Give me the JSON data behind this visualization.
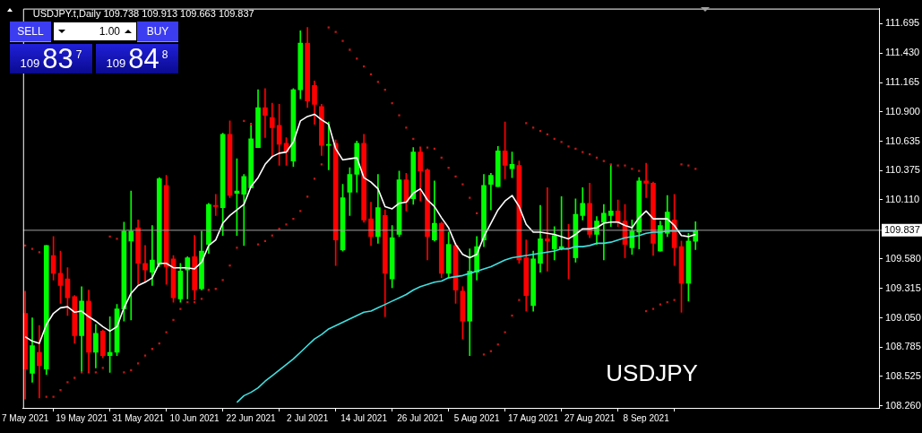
{
  "chart_data": {
    "type": "candlestick",
    "title": "USDJPY.t,Daily 109.738 109.913 109.663 109.837",
    "categories": [
      "7 May 2021",
      null,
      null,
      null,
      null,
      null,
      null,
      null,
      "19 May 2021",
      null,
      null,
      null,
      null,
      null,
      null,
      null,
      "31 May 2021",
      null,
      null,
      null,
      null,
      null,
      null,
      null,
      "10 Jun 2021",
      null,
      null,
      null,
      null,
      null,
      null,
      null,
      "22 Jun 2021",
      null,
      null,
      null,
      null,
      null,
      null,
      null,
      "2 Jul 2021",
      null,
      null,
      null,
      null,
      null,
      null,
      null,
      "14 Jul 2021",
      null,
      null,
      null,
      null,
      null,
      null,
      null,
      "26 Jul 2021",
      null,
      null,
      null,
      null,
      null,
      null,
      null,
      "5 Aug 2021",
      null,
      null,
      null,
      null,
      null,
      null,
      null,
      "17 Aug 2021",
      null,
      null,
      null,
      null,
      null,
      null,
      null,
      "27 Aug 2021",
      null,
      null,
      null,
      null,
      null,
      null,
      null,
      "8 Sep 2021",
      null,
      null,
      null,
      null,
      null,
      null,
      null
    ],
    "ylim": [
      108.24,
      111.83
    ],
    "yticks": [
      {
        "value": 111.695,
        "label": "111.695"
      },
      {
        "value": 111.43,
        "label": "111.430"
      },
      {
        "value": 111.165,
        "label": "111.165"
      },
      {
        "value": 110.9,
        "label": "110.900"
      },
      {
        "value": 110.635,
        "label": "110.635"
      },
      {
        "value": 110.375,
        "label": "110.375"
      },
      {
        "value": 110.11,
        "label": "110.110"
      },
      {
        "value": 109.58,
        "label": "109.580"
      },
      {
        "value": 109.315,
        "label": "109.315"
      },
      {
        "value": 109.05,
        "label": "109.050"
      },
      {
        "value": 108.785,
        "label": "108.785"
      },
      {
        "value": 108.525,
        "label": "108.525"
      },
      {
        "value": 108.26,
        "label": "108.260"
      }
    ],
    "series": [
      {
        "ohlc": [
          [
            109.09,
            109.29,
            108.32,
            108.59
          ],
          [
            108.55,
            109.05,
            108.47,
            108.8
          ],
          [
            108.74,
            108.98,
            108.33,
            108.62
          ],
          [
            108.59,
            109.7,
            108.54,
            109.7
          ],
          [
            109.61,
            109.78,
            109.39,
            109.45
          ],
          [
            109.45,
            109.65,
            109.18,
            109.34
          ],
          [
            109.4,
            109.5,
            109.07,
            109.23
          ],
          [
            109.24,
            109.25,
            108.82,
            108.89
          ],
          [
            108.89,
            109.33,
            108.56,
            109.2
          ],
          [
            109.2,
            109.3,
            108.56,
            108.74
          ],
          [
            108.74,
            108.99,
            108.6,
            108.91
          ],
          [
            108.93,
            108.94,
            108.69,
            108.71
          ],
          [
            108.71,
            109.06,
            108.56,
            108.74
          ],
          [
            108.74,
            109.17,
            108.71,
            109.13
          ],
          [
            109.13,
            109.91,
            109.02,
            109.83
          ],
          [
            109.74,
            110.19,
            109.03,
            109.83
          ],
          [
            109.86,
            109.93,
            109.35,
            109.54
          ],
          [
            109.54,
            109.7,
            109.38,
            109.48
          ],
          [
            109.46,
            109.88,
            109.34,
            109.57
          ],
          [
            109.53,
            110.31,
            109.51,
            110.3
          ],
          [
            110.24,
            110.33,
            109.35,
            109.51
          ],
          [
            109.58,
            109.61,
            109.19,
            109.23
          ],
          [
            109.22,
            109.54,
            109.19,
            109.47
          ],
          [
            109.48,
            109.6,
            109.22,
            109.59
          ],
          [
            109.6,
            109.79,
            109.21,
            109.3
          ],
          [
            109.31,
            109.83,
            109.3,
            109.65
          ],
          [
            109.71,
            110.08,
            109.63,
            110.07
          ],
          [
            110.06,
            110.16,
            109.97,
            110.05
          ],
          [
            110.04,
            110.71,
            109.79,
            110.7
          ],
          [
            110.7,
            110.82,
            110.13,
            110.15
          ],
          [
            110.17,
            110.48,
            109.79,
            110.19
          ],
          [
            110.16,
            110.34,
            109.7,
            110.32
          ],
          [
            110.22,
            110.8,
            110.22,
            110.66
          ],
          [
            110.58,
            111.1,
            110.58,
            110.94
          ],
          [
            110.94,
            111.11,
            110.67,
            110.87
          ],
          [
            110.85,
            110.98,
            110.49,
            110.76
          ],
          [
            110.78,
            110.97,
            110.42,
            110.61
          ],
          [
            110.62,
            110.67,
            110.42,
            110.54
          ],
          [
            110.46,
            111.11,
            110.41,
            111.1
          ],
          [
            111.1,
            111.63,
            111.02,
            111.52
          ],
          [
            111.52,
            111.66,
            110.94,
            111.0
          ],
          [
            111.14,
            111.18,
            110.79,
            110.97
          ],
          [
            110.95,
            110.97,
            110.51,
            110.6
          ],
          [
            110.6,
            110.81,
            110.38,
            110.61
          ],
          [
            110.62,
            110.65,
            109.52,
            109.75
          ],
          [
            109.66,
            110.25,
            109.65,
            110.13
          ],
          [
            110.18,
            110.4,
            109.97,
            110.34
          ],
          [
            110.34,
            110.64,
            110.18,
            110.62
          ],
          [
            110.62,
            110.7,
            109.91,
            109.93
          ],
          [
            109.94,
            110.09,
            109.7,
            109.78
          ],
          [
            109.78,
            110.34,
            109.72,
            110.04
          ],
          [
            109.97,
            110.02,
            109.06,
            109.45
          ],
          [
            109.4,
            109.88,
            109.32,
            109.77
          ],
          [
            109.8,
            110.37,
            109.78,
            110.29
          ],
          [
            110.29,
            110.35,
            110.01,
            110.09
          ],
          [
            110.12,
            110.58,
            110.07,
            110.54
          ],
          [
            110.54,
            110.58,
            110.1,
            110.37
          ],
          [
            110.38,
            110.39,
            109.57,
            109.78
          ],
          [
            109.75,
            110.28,
            109.74,
            109.9
          ],
          [
            109.9,
            109.91,
            109.41,
            109.45
          ],
          [
            109.45,
            109.82,
            109.41,
            109.71
          ],
          [
            109.7,
            109.72,
            109.18,
            109.3
          ],
          [
            109.29,
            109.33,
            108.86,
            109.02
          ],
          [
            109.02,
            109.67,
            108.71,
            109.47
          ],
          [
            109.46,
            109.78,
            109.39,
            109.69
          ],
          [
            109.75,
            110.34,
            109.69,
            110.24
          ],
          [
            110.25,
            110.35,
            110.02,
            110.33
          ],
          [
            110.23,
            110.59,
            110.23,
            110.55
          ],
          [
            110.55,
            110.81,
            110.3,
            110.42
          ],
          [
            110.39,
            110.54,
            110.31,
            110.43
          ],
          [
            110.42,
            110.46,
            109.54,
            109.57
          ],
          [
            109.59,
            109.75,
            109.11,
            109.25
          ],
          [
            109.16,
            109.65,
            109.11,
            109.58
          ],
          [
            109.54,
            110.06,
            109.46,
            109.76
          ],
          [
            109.76,
            110.22,
            109.47,
            109.74
          ],
          [
            109.67,
            109.87,
            109.57,
            109.79
          ],
          [
            109.67,
            110.14,
            109.66,
            109.69
          ],
          [
            109.68,
            109.89,
            109.4,
            109.67
          ],
          [
            109.59,
            110.12,
            109.55,
            109.98
          ],
          [
            109.97,
            110.22,
            109.93,
            110.08
          ],
          [
            110.08,
            110.26,
            109.77,
            109.8
          ],
          [
            109.8,
            109.96,
            109.71,
            109.92
          ],
          [
            109.91,
            110.07,
            109.57,
            109.99
          ],
          [
            109.97,
            110.43,
            109.87,
            110.01
          ],
          [
            110.01,
            110.11,
            109.87,
            109.91
          ],
          [
            109.92,
            110.07,
            109.59,
            109.71
          ],
          [
            109.68,
            109.93,
            109.62,
            109.83
          ],
          [
            109.82,
            110.31,
            109.67,
            110.28
          ],
          [
            110.28,
            110.44,
            110.13,
            110.26
          ],
          [
            110.26,
            110.27,
            109.61,
            109.72
          ],
          [
            109.65,
            109.92,
            109.65,
            109.88
          ],
          [
            109.81,
            110.15,
            109.78,
            110.0
          ],
          [
            109.93,
            110.16,
            109.52,
            109.68
          ],
          [
            109.69,
            109.74,
            109.1,
            109.36
          ],
          [
            109.36,
            109.81,
            109.2,
            109.74
          ],
          [
            109.738,
            109.913,
            109.663,
            109.837
          ]
        ],
        "colors": [
          "#ff0000",
          "#00ff00",
          "#ff0000",
          "#00ff00",
          "#ff0000",
          "#ff0000",
          "#ff0000",
          "#ff0000",
          "#00ff00",
          "#ff0000",
          "#00ff00",
          "#ff0000",
          "#00ff00",
          "#00ff00",
          "#00ff00",
          "#00ff00",
          "#ff0000",
          "#ff0000",
          "#00ff00",
          "#00ff00",
          "#ff0000",
          "#ff0000",
          "#00ff00",
          "#00ff00",
          "#ff0000",
          "#00ff00",
          "#00ff00",
          "#ff0000",
          "#00ff00",
          "#ff0000",
          "#00ff00",
          "#00ff00",
          "#00ff00",
          "#00ff00",
          "#ff0000",
          "#ff0000",
          "#ff0000",
          "#ff0000",
          "#00ff00",
          "#00ff00",
          "#ff0000",
          "#ff0000",
          "#ff0000",
          "#00ff00",
          "#ff0000",
          "#00ff00",
          "#00ff00",
          "#00ff00",
          "#ff0000",
          "#ff0000",
          "#00ff00",
          "#ff0000",
          "#00ff00",
          "#00ff00",
          "#ff0000",
          "#00ff00",
          "#ff0000",
          "#ff0000",
          "#00ff00",
          "#ff0000",
          "#00ff00",
          "#ff0000",
          "#ff0000",
          "#00ff00",
          "#00ff00",
          "#00ff00",
          "#00ff00",
          "#00ff00",
          "#ff0000",
          "#00ff00",
          "#ff0000",
          "#ff0000",
          "#00ff00",
          "#00ff00",
          "#ff0000",
          "#00ff00",
          "#00ff00",
          "#ff0000",
          "#00ff00",
          "#00ff00",
          "#ff0000",
          "#00ff00",
          "#00ff00",
          "#00ff00",
          "#ff0000",
          "#ff0000",
          "#00ff00",
          "#00ff00",
          "#ff0000",
          "#ff0000",
          "#00ff00",
          "#00ff00",
          "#ff0000",
          "#ff0000",
          "#00ff00",
          "#00ff00"
        ]
      },
      {
        "type": "line",
        "color": "#ffffff",
        "values": [
          108.88,
          108.84,
          108.82,
          108.99,
          109.09,
          109.14,
          109.15,
          109.1,
          109.11,
          109.06,
          109.02,
          108.97,
          108.93,
          108.97,
          109.14,
          109.27,
          109.34,
          109.37,
          109.41,
          109.54,
          109.54,
          109.5,
          109.5,
          109.5,
          109.49,
          109.55,
          109.7,
          109.75,
          109.9,
          109.97,
          110.02,
          110.07,
          110.23,
          110.31,
          110.43,
          110.5,
          110.53,
          110.54,
          110.63,
          110.82,
          110.86,
          110.88,
          110.83,
          110.79,
          110.57,
          110.47,
          110.48,
          110.49,
          110.31,
          110.27,
          110.21,
          110.05,
          110.03,
          110.08,
          110.09,
          110.17,
          110.21,
          110.11,
          110.05,
          109.95,
          109.86,
          109.71,
          109.62,
          109.59,
          109.62,
          109.78,
          109.9,
          110.02,
          110.1,
          110.15,
          110.05,
          109.89,
          109.82,
          109.82,
          109.81,
          109.8,
          109.78,
          109.76,
          109.8,
          109.85,
          109.85,
          109.86,
          109.9,
          109.91,
          109.91,
          109.88,
          109.86,
          109.95,
          110.01,
          109.94,
          109.94,
          109.94,
          109.88,
          109.79,
          109.78,
          109.8
        ]
      },
      {
        "type": "line",
        "color": "#40e0e0",
        "values": [
          null,
          null,
          null,
          null,
          null,
          null,
          null,
          null,
          null,
          null,
          null,
          null,
          null,
          null,
          null,
          null,
          null,
          null,
          null,
          null,
          null,
          null,
          null,
          null,
          null,
          null,
          null,
          null,
          null,
          null,
          108.29,
          108.35,
          108.38,
          108.42,
          108.48,
          108.53,
          108.58,
          108.63,
          108.68,
          108.74,
          108.8,
          108.86,
          108.9,
          108.95,
          108.98,
          109.01,
          109.04,
          109.07,
          109.1,
          109.11,
          109.14,
          109.17,
          109.2,
          109.23,
          109.26,
          109.3,
          109.33,
          109.35,
          109.37,
          109.38,
          109.41,
          109.42,
          109.43,
          109.45,
          109.47,
          109.49,
          109.51,
          109.54,
          109.57,
          109.59,
          109.6,
          109.61,
          109.62,
          109.63,
          109.64,
          109.65,
          109.67,
          109.67,
          109.69,
          109.69,
          109.7,
          109.72,
          109.72,
          109.73,
          109.75,
          109.77,
          109.78,
          109.79,
          109.81,
          109.82,
          109.82,
          109.83,
          109.83,
          109.83,
          109.83,
          109.83
        ]
      },
      {
        "type": "scatter",
        "color": "#c01818",
        "marker": "square",
        "values": [
          109.7,
          109.67,
          109.64,
          108.34,
          108.34,
          108.4,
          108.47,
          108.51,
          108.56,
          108.56,
          108.56,
          108.6,
          109.78,
          109.76,
          108.56,
          108.58,
          108.64,
          108.71,
          108.77,
          108.82,
          108.92,
          109.03,
          109.13,
          109.19,
          109.19,
          109.22,
          109.3,
          109.31,
          109.39,
          109.52,
          109.68,
          110.82,
          110.79,
          109.71,
          109.74,
          109.79,
          109.85,
          109.89,
          109.94,
          110.01,
          110.14,
          110.3,
          110.43,
          111.66,
          111.62,
          111.54,
          111.46,
          111.38,
          111.31,
          111.24,
          111.17,
          111.1,
          110.98,
          110.87,
          110.76,
          110.66,
          110.58,
          110.58,
          110.57,
          110.49,
          110.4,
          110.32,
          110.25,
          110.13,
          109.99,
          108.72,
          108.75,
          108.81,
          108.92,
          109.07,
          109.21,
          110.8,
          110.76,
          110.73,
          110.7,
          110.66,
          110.63,
          110.59,
          110.57,
          110.54,
          110.52,
          110.49,
          110.46,
          110.43,
          110.42,
          110.42,
          110.39,
          110.37,
          109.11,
          109.13,
          109.17,
          109.19,
          109.21,
          110.43,
          110.42,
          110.39
        ]
      }
    ],
    "ref_lines": [
      {
        "axis": "y",
        "value": 109.837,
        "label": "109.837",
        "color": "#a0a0a0"
      }
    ],
    "annotations": [
      "SELL",
      "1.00",
      "BUY",
      "10983$^{7}$",
      "10984$^{8}$",
      "USDJPY"
    ]
  }
}
